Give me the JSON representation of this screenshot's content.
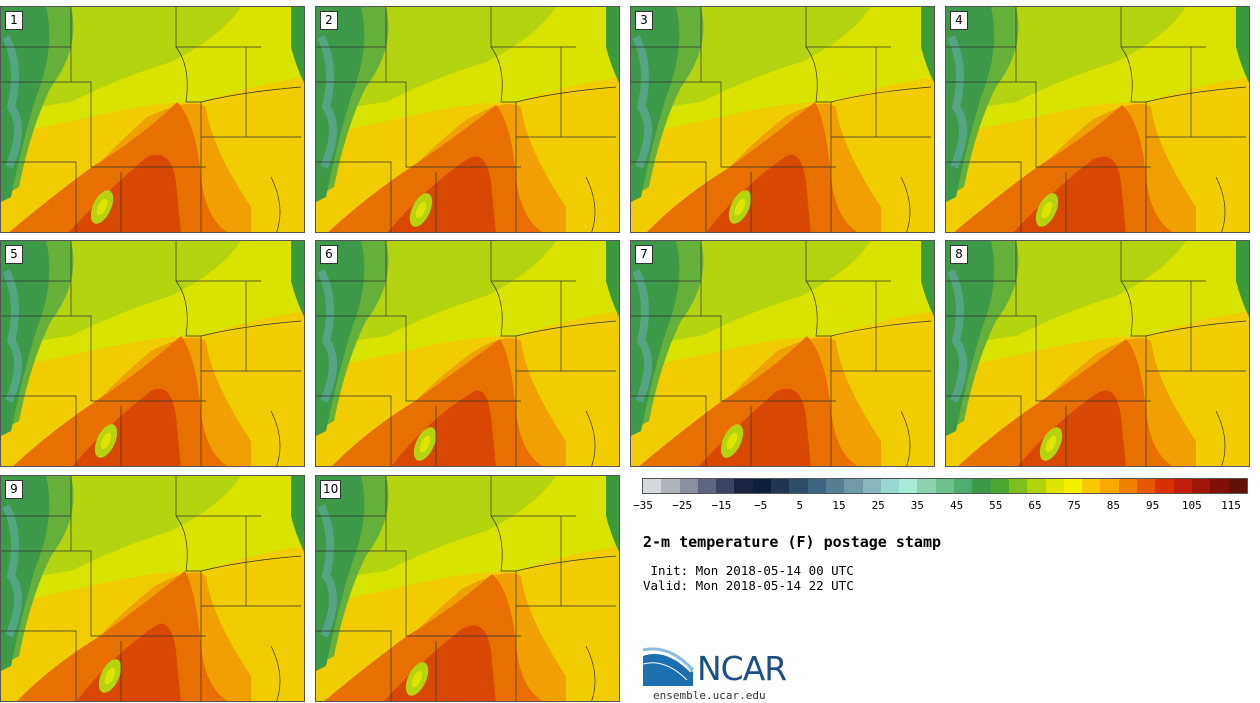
{
  "title": "2-m temperature (F) postage stamp",
  "init_line": " Init: Mon 2018-05-14 00 UTC",
  "valid_line": "Valid: Mon 2018-05-14 22 UTC",
  "logo_text": "NCAR",
  "logo_url": "ensemble.ucar.edu",
  "panels": [
    {
      "label": "1"
    },
    {
      "label": "2"
    },
    {
      "label": "3"
    },
    {
      "label": "4"
    },
    {
      "label": "5"
    },
    {
      "label": "6"
    },
    {
      "label": "7"
    },
    {
      "label": "8"
    },
    {
      "label": "9"
    },
    {
      "label": "10"
    }
  ],
  "colorbar": {
    "colors": [
      "#d5d8dc",
      "#b0b4bc",
      "#8a8fa0",
      "#5f6680",
      "#3a4462",
      "#1a2440",
      "#0f1e3a",
      "#1f3550",
      "#2e4d68",
      "#3f6680",
      "#567f92",
      "#6f9aa6",
      "#89b6bc",
      "#98d8d0",
      "#a8ecd8",
      "#8cd2b0",
      "#6cc08e",
      "#4eac70",
      "#3a9a48",
      "#4ca830",
      "#7fbe1c",
      "#b0d40c",
      "#dce400",
      "#f6f000",
      "#f8c800",
      "#f8a800",
      "#f08000",
      "#e85800",
      "#d83000",
      "#c01e08",
      "#a01808",
      "#801008",
      "#601008"
    ],
    "ticks": [
      "−35",
      "−25",
      "−15",
      "−5",
      "5",
      "15",
      "25",
      "35",
      "45",
      "55",
      "65",
      "75",
      "85",
      "95",
      "105",
      "115"
    ]
  }
}
